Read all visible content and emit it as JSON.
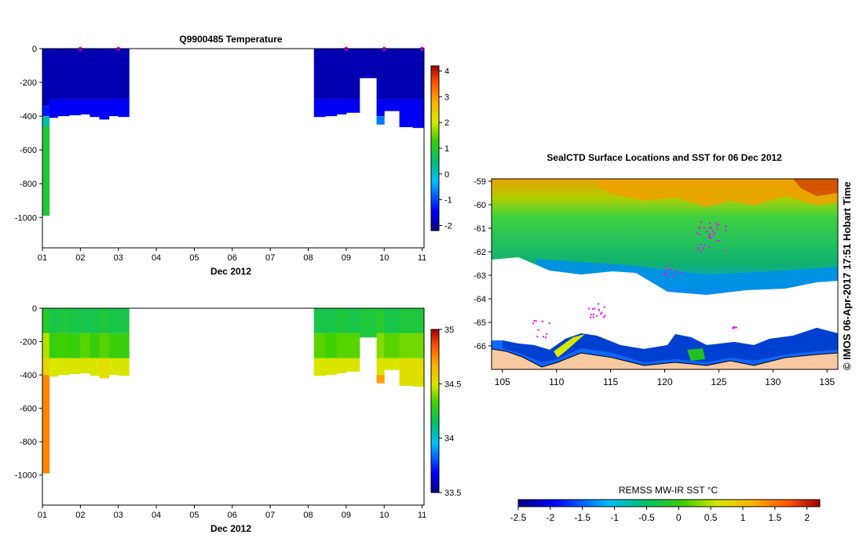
{
  "chart_data": [
    {
      "type": "heatmap",
      "title": "Q9900485  Temperature",
      "xlabel": "Dec 2012",
      "ylabel": "",
      "x_ticks": [
        "01",
        "02",
        "03",
        "04",
        "05",
        "06",
        "07",
        "08",
        "09",
        "10",
        "11"
      ],
      "y_ticks": [
        "0",
        "-200",
        "-400",
        "-600",
        "-800",
        "-1000"
      ],
      "xlim": [
        1,
        11.05
      ],
      "ylim": [
        -1180,
        0
      ],
      "colorbar": {
        "ticks": [
          "4",
          "3",
          "2",
          "1",
          "0",
          "-1",
          "-2"
        ],
        "range": [
          -2.2,
          4.2
        ]
      },
      "profiles": [
        {
          "x0": 1.0,
          "x1": 1.18,
          "depth": 990,
          "segments": [
            [
              0,
              340,
              -1.9
            ],
            [
              340,
              400,
              -1.3
            ],
            [
              400,
              460,
              0.2
            ],
            [
              460,
              990,
              0.9
            ]
          ]
        },
        {
          "x0": 1.18,
          "x1": 1.4,
          "depth": 410,
          "segments": [
            [
              0,
              300,
              -1.9
            ],
            [
              300,
              410,
              -1.5
            ]
          ]
        },
        {
          "x0": 1.4,
          "x1": 1.7,
          "depth": 400,
          "segments": [
            [
              0,
              300,
              -1.9
            ],
            [
              300,
              400,
              -1.5
            ]
          ]
        },
        {
          "x0": 1.7,
          "x1": 2.0,
          "depth": 395,
          "segments": [
            [
              0,
              300,
              -1.9
            ],
            [
              300,
              395,
              -1.5
            ]
          ]
        },
        {
          "x0": 2.0,
          "x1": 2.25,
          "depth": 390,
          "segments": [
            [
              0,
              300,
              -1.9
            ],
            [
              300,
              390,
              -1.5
            ]
          ]
        },
        {
          "x0": 2.25,
          "x1": 2.5,
          "depth": 405,
          "segments": [
            [
              0,
              300,
              -1.9
            ],
            [
              300,
              405,
              -1.5
            ]
          ]
        },
        {
          "x0": 2.5,
          "x1": 2.75,
          "depth": 420,
          "segments": [
            [
              0,
              300,
              -1.9
            ],
            [
              300,
              420,
              -1.5
            ]
          ]
        },
        {
          "x0": 2.75,
          "x1": 3.0,
          "depth": 400,
          "segments": [
            [
              0,
              300,
              -1.9
            ],
            [
              300,
              400,
              -1.5
            ]
          ]
        },
        {
          "x0": 3.0,
          "x1": 3.28,
          "depth": 405,
          "segments": [
            [
              0,
              300,
              -1.9
            ],
            [
              300,
              405,
              -1.5
            ]
          ]
        },
        {
          "x0": 8.15,
          "x1": 8.45,
          "depth": 405,
          "segments": [
            [
              0,
              300,
              -1.9
            ],
            [
              300,
              405,
              -1.5
            ]
          ]
        },
        {
          "x0": 8.45,
          "x1": 8.75,
          "depth": 400,
          "segments": [
            [
              0,
              300,
              -1.9
            ],
            [
              300,
              400,
              -1.5
            ]
          ]
        },
        {
          "x0": 8.75,
          "x1": 9.0,
          "depth": 390,
          "segments": [
            [
              0,
              300,
              -1.9
            ],
            [
              300,
              390,
              -1.5
            ]
          ]
        },
        {
          "x0": 9.0,
          "x1": 9.35,
          "depth": 380,
          "segments": [
            [
              0,
              300,
              -1.9
            ],
            [
              300,
              380,
              -1.5
            ]
          ]
        },
        {
          "x0": 9.35,
          "x1": 9.8,
          "depth": 175,
          "segments": [
            [
              0,
              175,
              -1.9
            ]
          ]
        },
        {
          "x0": 9.8,
          "x1": 10.0,
          "depth": 450,
          "segments": [
            [
              0,
              300,
              -1.9
            ],
            [
              300,
              400,
              -1.5
            ],
            [
              400,
              450,
              -0.7
            ]
          ]
        },
        {
          "x0": 10.0,
          "x1": 10.4,
          "depth": 370,
          "segments": [
            [
              0,
              300,
              -1.9
            ],
            [
              300,
              370,
              -1.5
            ]
          ]
        },
        {
          "x0": 10.4,
          "x1": 10.75,
          "depth": 465,
          "segments": [
            [
              0,
              300,
              -1.9
            ],
            [
              300,
              465,
              -1.5
            ]
          ]
        },
        {
          "x0": 10.75,
          "x1": 11.05,
          "depth": 470,
          "segments": [
            [
              0,
              300,
              -1.9
            ],
            [
              300,
              470,
              -1.5
            ]
          ]
        }
      ],
      "markers_x": [
        2.0,
        3.0,
        9.0,
        10.0,
        11.0
      ],
      "marker_color": "#ff00ff"
    },
    {
      "type": "heatmap",
      "title": "",
      "xlabel": "Dec 2012",
      "ylabel": "",
      "x_ticks": [
        "01",
        "02",
        "03",
        "04",
        "05",
        "06",
        "07",
        "08",
        "09",
        "10",
        "11"
      ],
      "y_ticks": [
        "0",
        "-200",
        "-400",
        "-600",
        "-800",
        "-1000"
      ],
      "xlim": [
        1,
        11.05
      ],
      "ylim": [
        -1180,
        0
      ],
      "colorbar": {
        "ticks": [
          "35",
          "34.5",
          "34",
          "33.5"
        ],
        "range": [
          33.5,
          35.0
        ]
      },
      "profiles": [
        {
          "x0": 1.0,
          "x1": 1.18,
          "depth": 990,
          "segments": [
            [
              0,
              150,
              34.25
            ],
            [
              150,
              300,
              34.45
            ],
            [
              300,
              400,
              34.55
            ],
            [
              400,
              990,
              34.75
            ]
          ]
        },
        {
          "x0": 1.18,
          "x1": 1.4,
          "depth": 410,
          "segments": [
            [
              0,
              150,
              34.2
            ],
            [
              150,
              300,
              34.3
            ],
            [
              300,
              410,
              34.5
            ]
          ]
        },
        {
          "x0": 1.4,
          "x1": 1.7,
          "depth": 400,
          "segments": [
            [
              0,
              150,
              34.22
            ],
            [
              150,
              300,
              34.32
            ],
            [
              300,
              400,
              34.5
            ]
          ]
        },
        {
          "x0": 1.7,
          "x1": 2.0,
          "depth": 395,
          "segments": [
            [
              0,
              150,
              34.2
            ],
            [
              150,
              300,
              34.3
            ],
            [
              300,
              395,
              34.5
            ]
          ]
        },
        {
          "x0": 2.0,
          "x1": 2.25,
          "depth": 390,
          "segments": [
            [
              0,
              150,
              34.2
            ],
            [
              150,
              300,
              34.35
            ],
            [
              300,
              390,
              34.5
            ]
          ]
        },
        {
          "x0": 2.25,
          "x1": 2.5,
          "depth": 405,
          "segments": [
            [
              0,
              150,
              34.2
            ],
            [
              150,
              300,
              34.3
            ],
            [
              300,
              405,
              34.5
            ]
          ]
        },
        {
          "x0": 2.5,
          "x1": 2.75,
          "depth": 420,
          "segments": [
            [
              0,
              150,
              34.22
            ],
            [
              150,
              300,
              34.35
            ],
            [
              300,
              420,
              34.52
            ]
          ]
        },
        {
          "x0": 2.75,
          "x1": 3.0,
          "depth": 400,
          "segments": [
            [
              0,
              150,
              34.2
            ],
            [
              150,
              300,
              34.3
            ],
            [
              300,
              400,
              34.5
            ]
          ]
        },
        {
          "x0": 3.0,
          "x1": 3.28,
          "depth": 405,
          "segments": [
            [
              0,
              150,
              34.2
            ],
            [
              150,
              300,
              34.3
            ],
            [
              300,
              405,
              34.5
            ]
          ]
        },
        {
          "x0": 8.15,
          "x1": 8.45,
          "depth": 405,
          "segments": [
            [
              0,
              150,
              34.2
            ],
            [
              150,
              300,
              34.35
            ],
            [
              300,
              405,
              34.5
            ]
          ]
        },
        {
          "x0": 8.45,
          "x1": 8.75,
          "depth": 400,
          "segments": [
            [
              0,
              150,
              34.2
            ],
            [
              150,
              300,
              34.32
            ],
            [
              300,
              400,
              34.5
            ]
          ]
        },
        {
          "x0": 8.75,
          "x1": 9.0,
          "depth": 390,
          "segments": [
            [
              0,
              150,
              34.22
            ],
            [
              150,
              300,
              34.35
            ],
            [
              300,
              390,
              34.5
            ]
          ]
        },
        {
          "x0": 9.0,
          "x1": 9.35,
          "depth": 380,
          "segments": [
            [
              0,
              150,
              34.2
            ],
            [
              150,
              300,
              34.35
            ],
            [
              300,
              380,
              34.5
            ]
          ]
        },
        {
          "x0": 9.35,
          "x1": 9.8,
          "depth": 175,
          "segments": [
            [
              0,
              175,
              34.22
            ]
          ]
        },
        {
          "x0": 9.8,
          "x1": 10.0,
          "depth": 450,
          "segments": [
            [
              0,
              150,
              34.25
            ],
            [
              150,
              300,
              34.4
            ],
            [
              300,
              400,
              34.5
            ],
            [
              400,
              450,
              34.7
            ]
          ]
        },
        {
          "x0": 10.0,
          "x1": 10.4,
          "depth": 370,
          "segments": [
            [
              0,
              150,
              34.2
            ],
            [
              150,
              300,
              34.35
            ],
            [
              300,
              370,
              34.5
            ]
          ]
        },
        {
          "x0": 10.4,
          "x1": 10.75,
          "depth": 465,
          "segments": [
            [
              0,
              150,
              34.22
            ],
            [
              150,
              300,
              34.38
            ],
            [
              300,
              465,
              34.52
            ]
          ]
        },
        {
          "x0": 10.75,
          "x1": 11.05,
          "depth": 470,
          "segments": [
            [
              0,
              150,
              34.22
            ],
            [
              150,
              300,
              34.38
            ],
            [
              300,
              470,
              34.52
            ]
          ]
        }
      ]
    },
    {
      "type": "heatmap",
      "title": "SealCTD Surface Locations and SST for 06 Dec 2012",
      "xlabel": "",
      "ylabel": "",
      "x_ticks": [
        "105",
        "110",
        "115",
        "120",
        "125",
        "130",
        "135"
      ],
      "y_ticks": [
        "-59",
        "-60",
        "-61",
        "-62",
        "-63",
        "-64",
        "-65",
        "-66"
      ],
      "xlim": [
        104,
        136
      ],
      "ylim": [
        -67,
        -58.9
      ],
      "colorbar": {
        "label": "REMSS MW-IR SST °C",
        "ticks": [
          "-2.5",
          "-2",
          "-1.5",
          "-1",
          "-0.5",
          "0",
          "0.5",
          "1",
          "1.5",
          "2"
        ],
        "range": [
          -2.5,
          2.2
        ]
      }
    }
  ],
  "side_label": "© IMOS 06-Apr-2017 17:51 Hobart Time"
}
